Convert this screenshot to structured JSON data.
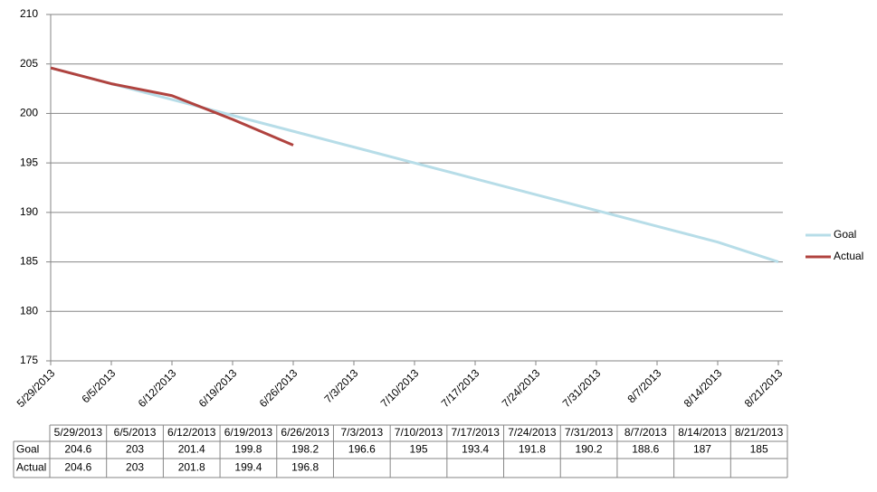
{
  "chart_data": {
    "type": "line",
    "categories": [
      "5/29/2013",
      "6/5/2013",
      "6/12/2013",
      "6/19/2013",
      "6/26/2013",
      "7/3/2013",
      "7/10/2013",
      "7/17/2013",
      "7/24/2013",
      "7/31/2013",
      "8/7/2013",
      "8/14/2013",
      "8/21/2013"
    ],
    "series": [
      {
        "name": "Goal",
        "color": "#b7dde8",
        "values": [
          204.6,
          203,
          201.4,
          199.8,
          198.2,
          196.6,
          195,
          193.4,
          191.8,
          190.2,
          188.6,
          187,
          185
        ]
      },
      {
        "name": "Actual",
        "color": "#b0433f",
        "values": [
          204.6,
          203,
          201.8,
          199.4,
          196.8,
          null,
          null,
          null,
          null,
          null,
          null,
          null,
          null
        ]
      }
    ],
    "ylim": [
      175,
      210
    ],
    "yticks": [
      175,
      180,
      185,
      190,
      195,
      200,
      205,
      210
    ],
    "grid": true,
    "legend": "right",
    "data_table": true
  }
}
